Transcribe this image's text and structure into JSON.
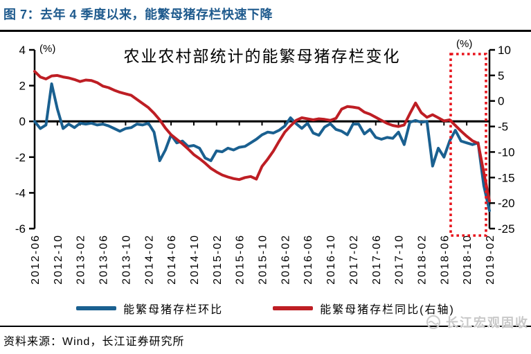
{
  "header": {
    "title": "图 7：去年 4 季度以来，能繁母猪存栏快速下降"
  },
  "chart": {
    "title": "农业农村部统计的能繁母猪存栏变化",
    "left_axis": {
      "unit": "(%)",
      "ticks": [
        4,
        2,
        0,
        -2,
        -4,
        -6
      ]
    },
    "right_axis": {
      "unit": "(%)",
      "ticks": [
        10,
        5,
        0,
        -5,
        -10,
        -15,
        -20,
        -25
      ]
    },
    "legend": [
      {
        "label": "能繁母猪存栏环比"
      },
      {
        "label": "能繁母猪存栏同比(右轴)"
      }
    ]
  },
  "chart_data": {
    "type": "line",
    "title": "农业农村部统计的能繁母猪存栏变化",
    "x_start": "2012-06",
    "x_interval": "monthly",
    "x_tick_labels": [
      "2012-06",
      "2012-10",
      "2013-02",
      "2013-06",
      "2013-10",
      "2014-02",
      "2014-06",
      "2014-10",
      "2015-02",
      "2015-06",
      "2015-10",
      "2016-02",
      "2016-06",
      "2016-10",
      "2017-02",
      "2017-06",
      "2017-10",
      "2018-02",
      "2018-06",
      "2018-10",
      "2019-02"
    ],
    "x_tick_step_months": 4,
    "left_ylim": [
      -6,
      4
    ],
    "right_ylim": [
      -25,
      10
    ],
    "grid": false,
    "legend_position": "bottom",
    "series": [
      {
        "name": "能繁母猪存栏环比",
        "axis": "left",
        "color": "#1a6090",
        "values": [
          0.0,
          -0.4,
          -0.2,
          2.1,
          0.7,
          -0.4,
          -0.15,
          -0.35,
          -0.1,
          -0.15,
          -0.1,
          -0.2,
          -0.15,
          -0.25,
          -0.4,
          -0.55,
          -0.4,
          -0.35,
          -0.15,
          -0.2,
          -0.1,
          -0.6,
          -2.2,
          -1.6,
          -0.75,
          -1.2,
          -1.1,
          -1.4,
          -1.35,
          -1.5,
          -2.05,
          -2.2,
          -1.65,
          -1.7,
          -1.5,
          -1.6,
          -1.45,
          -1.4,
          -1.2,
          -1.0,
          -0.75,
          -0.6,
          -0.65,
          -0.5,
          -0.26,
          0.2,
          -0.13,
          -0.39,
          -0.1,
          -0.65,
          -0.78,
          -0.32,
          -0.13,
          -0.45,
          -0.55,
          -0.75,
          -0.15,
          -0.15,
          -0.7,
          -0.45,
          -0.9,
          -1.0,
          -0.9,
          -0.95,
          -0.6,
          -1.3,
          -0.05,
          0.05,
          -0.05,
          0.0,
          -2.5,
          -1.5,
          -2.0,
          -1.1,
          -0.5,
          -1.1,
          -1.2,
          -1.3,
          -1.2,
          -3.6,
          -5.0
        ]
      },
      {
        "name": "能繁母猪存栏同比(右轴)",
        "axis": "right",
        "color": "#be1e24",
        "values": [
          5.8,
          4.7,
          4.3,
          4.9,
          5.0,
          4.7,
          4.5,
          4.2,
          3.8,
          4.1,
          4.0,
          3.6,
          2.9,
          2.6,
          2.1,
          1.7,
          1.4,
          1.1,
          0.3,
          -0.5,
          -1.3,
          -2.4,
          -3.7,
          -5.3,
          -6.6,
          -7.5,
          -8.4,
          -9.4,
          -10.5,
          -11.3,
          -12.2,
          -13.2,
          -13.9,
          -14.5,
          -14.9,
          -15.2,
          -15.4,
          -15.0,
          -14.8,
          -15.3,
          -12.8,
          -11.4,
          -9.8,
          -7.9,
          -6.1,
          -4.9,
          -3.8,
          -3.3,
          -3.5,
          -3.7,
          -3.5,
          -3.6,
          -3.8,
          -3.4,
          -1.6,
          -1.1,
          -1.2,
          -1.4,
          -2.2,
          -2.6,
          -3.2,
          -3.8,
          -4.4,
          -4.8,
          -5.0,
          -4.7,
          -2.5,
          -0.4,
          -2.3,
          -3.2,
          -2.7,
          -3.3,
          -3.9,
          -3.7,
          -4.8,
          -5.9,
          -6.9,
          -7.8,
          -8.3,
          -14.0,
          -19.6
        ]
      }
    ],
    "annotations": [
      {
        "type": "highlight-box",
        "label": "",
        "x_from": "2018-08",
        "x_to": "2019-02",
        "style": "dotted-rectangle"
      }
    ]
  },
  "footer": {
    "source": "资料来源：Wind，长江证券研究所",
    "watermark": "长江宏观固收"
  },
  "colors": {
    "header_title": "#1e5a8d",
    "series_mom_blue": "#1a6090",
    "series_yoy_red": "#be1e24",
    "highlight_box_red": "#e8151d",
    "axis_black": "#000000",
    "watermark_gray": "#c9c9c9"
  }
}
